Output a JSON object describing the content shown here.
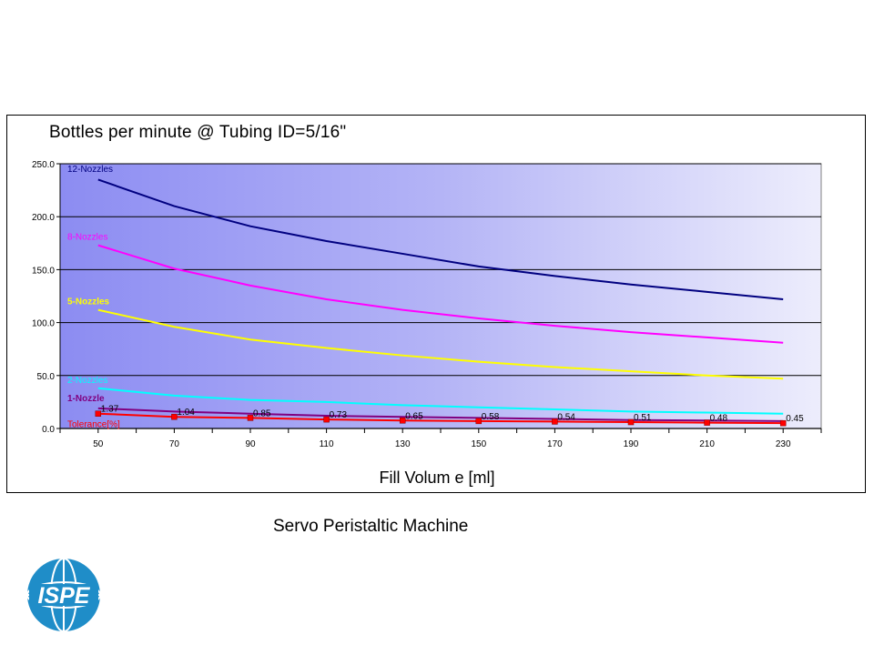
{
  "caption": "Servo Peristaltic Machine",
  "logo": {
    "text": "ISPE",
    "mark": "®",
    "color": "#1f8dc8"
  },
  "chart_data": {
    "type": "line",
    "title": "Bottles per minute @ Tubing ID=5/16\"",
    "xlabel": "Fill Volum e [ml]",
    "ylabel": "",
    "ylim": [
      0,
      250
    ],
    "yticks": [
      "0.0",
      "50.0",
      "100.0",
      "150.0",
      "200.0",
      "250.0"
    ],
    "x": [
      50,
      70,
      90,
      110,
      130,
      150,
      170,
      190,
      210,
      230
    ],
    "xtick_labels": [
      "50",
      "70",
      "90",
      "110",
      "130",
      "150",
      "170",
      "190",
      "210",
      "230"
    ],
    "grid": "horizontal",
    "background": "gradient blue to white",
    "series": [
      {
        "name": "12-Nozzles",
        "color": "#000080",
        "values": [
          235,
          210,
          191,
          177,
          165,
          153,
          144,
          136,
          129,
          122
        ]
      },
      {
        "name": "8-Nozzles",
        "color": "#ff00ff",
        "values": [
          173,
          151,
          135,
          122,
          112,
          104,
          97,
          91,
          86,
          81
        ]
      },
      {
        "name": "5-Nozzles",
        "color": "#ffff00",
        "values": [
          112,
          96,
          84,
          76,
          69,
          63,
          58,
          54,
          50,
          47
        ]
      },
      {
        "name": "2-Nozzles",
        "color": "#00ffff",
        "values": [
          38,
          31,
          27,
          25,
          22,
          20,
          18,
          16,
          15,
          14
        ]
      },
      {
        "name": "1-Nozzle",
        "color": "#800080",
        "values": [
          19,
          16,
          14,
          12,
          11,
          10,
          9,
          8,
          7.5,
          7
        ]
      },
      {
        "name": "Tolerance[%]",
        "color": "#ff0000",
        "values": [
          14,
          11,
          10,
          8.5,
          7.5,
          7,
          6.5,
          6,
          5.5,
          5
        ]
      }
    ],
    "tolerance_labels": [
      "1.37",
      "1.04",
      "0.85",
      "0.73",
      "0.65",
      "0.58",
      "0.54",
      "0.51",
      "0.48",
      "0.45"
    ]
  }
}
